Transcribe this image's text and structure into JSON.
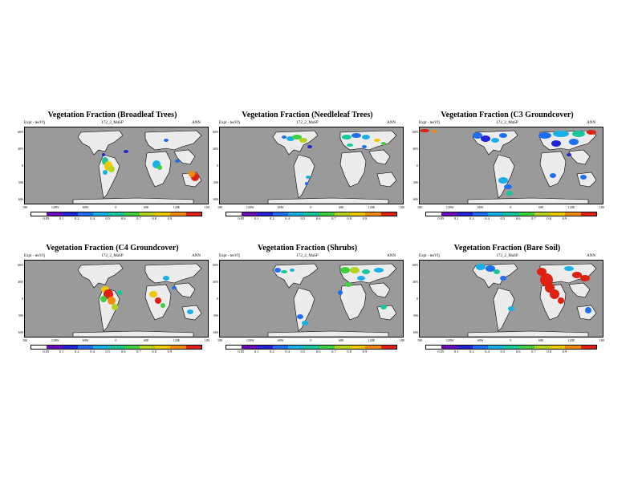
{
  "panels": [
    {
      "title": "Vegetation Fraction (Broadleaf Trees)",
      "expt": "Expt - tesVfj",
      "sub": "172_2_MaSP",
      "season": "ANN",
      "variant": "broadleaf",
      "lat_labels": [
        "60N",
        "30N",
        "0",
        "30S",
        "60S"
      ],
      "lon_labels": [
        "180",
        "120W",
        "60W",
        "0",
        "60E",
        "120E",
        "180"
      ],
      "cbar_labels": [
        "0.05",
        "0.1",
        "0.2",
        "0.4",
        "0.5",
        "0.6",
        "0.7",
        "0.8",
        "0.9"
      ]
    },
    {
      "title": "Vegetation Fraction (Needleleaf Trees)",
      "expt": "Expt - tesVfj",
      "sub": "172_2_MaSP",
      "season": "ANN",
      "variant": "needle",
      "lat_labels": [
        "60N",
        "30N",
        "0",
        "30S",
        "60S"
      ],
      "lon_labels": [
        "180",
        "120W",
        "60W",
        "0",
        "60E",
        "120E",
        "180"
      ],
      "cbar_labels": [
        "0.05",
        "0.1",
        "0.2",
        "0.4",
        "0.5",
        "0.6",
        "0.7",
        "0.8",
        "0.9"
      ]
    },
    {
      "title": "Vegetation Fraction (C3 Groundcover)",
      "expt": "Expt - tesVfj",
      "sub": "172_2_MaSP",
      "season": "ANN",
      "variant": "c3",
      "lat_labels": [
        "60N",
        "30N",
        "0",
        "30S",
        "60S"
      ],
      "lon_labels": [
        "180",
        "120W",
        "60W",
        "0",
        "60E",
        "120E",
        "180"
      ],
      "cbar_labels": [
        "0.05",
        "0.1",
        "0.2",
        "0.4",
        "0.5",
        "0.6",
        "0.7",
        "0.8",
        "0.9"
      ]
    },
    {
      "title": "Vegetation Fraction (C4 Groundcover)",
      "expt": "Expt - tesVfj",
      "sub": "172_2_MaSP",
      "season": "ANN",
      "variant": "c4",
      "lat_labels": [
        "60N",
        "30N",
        "0",
        "30S",
        "60S"
      ],
      "lon_labels": [
        "180",
        "120W",
        "60W",
        "0",
        "60E",
        "120E",
        "180"
      ],
      "cbar_labels": [
        "0.05",
        "0.1",
        "0.2",
        "0.4",
        "0.5",
        "0.6",
        "0.7",
        "0.8",
        "0.9"
      ]
    },
    {
      "title": "Vegetation Fraction (Shrubs)",
      "expt": "Expt - tesVfj",
      "sub": "172_2_MaSP",
      "season": "ANN",
      "variant": "shrubs",
      "lat_labels": [
        "60N",
        "30N",
        "0",
        "30S",
        "60S"
      ],
      "lon_labels": [
        "180",
        "120W",
        "60W",
        "0",
        "60E",
        "120E",
        "180"
      ],
      "cbar_labels": [
        "0.05",
        "0.1",
        "0.2",
        "0.4",
        "0.5",
        "0.6",
        "0.7",
        "0.8",
        "0.9"
      ]
    },
    {
      "title": "Vegetation Fraction (Bare Soil)",
      "expt": "Expt - tesVfj",
      "sub": "172_2_MaSP",
      "season": "ANN",
      "variant": "bare",
      "lat_labels": [
        "60N",
        "30N",
        "0",
        "30S",
        "60S"
      ],
      "lon_labels": [
        "180",
        "120W",
        "60W",
        "0",
        "60E",
        "120E",
        "180"
      ],
      "cbar_labels": [
        "0.05",
        "0.1",
        "0.2",
        "0.4",
        "0.5",
        "0.6",
        "0.7",
        "0.8",
        "0.9"
      ]
    }
  ],
  "colors": {
    "ocean": "#9a9a9a",
    "land_low": "#ececec",
    "scale": [
      "#ffffff",
      "#6a0fb8",
      "#2323d6",
      "#1f6ef2",
      "#19b0e8",
      "#18c89c",
      "#3fcf3f",
      "#b6d21e",
      "#f0c800",
      "#f08a10",
      "#e02010"
    ]
  }
}
